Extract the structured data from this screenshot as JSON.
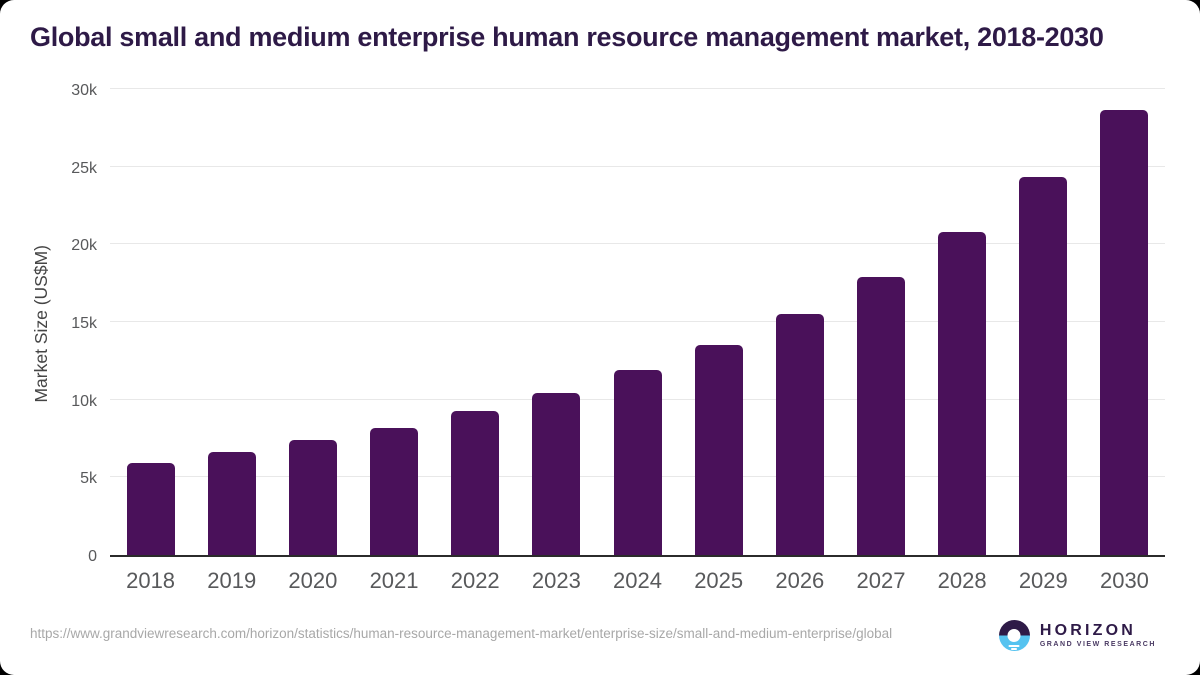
{
  "page": {
    "title": "Global small and medium enterprise human resource management market, 2018-2030",
    "source_url": "https://www.grandviewresearch.com/horizon/statistics/human-resource-management-market/enterprise-size/small-and-medium-enterprise/global",
    "logo": {
      "name": "HORIZON",
      "subtitle": "GRAND VIEW RESEARCH"
    }
  },
  "colors": {
    "bar": "#4A115A",
    "title": "#2E1A47",
    "tick_text": "#58595B",
    "gridline": "#E8E8E8",
    "axis_line": "#2B2B2B",
    "url_text": "#A8A8A8",
    "logo_blue": "#56C3F0"
  },
  "chart_data": {
    "type": "bar",
    "title": "Global small and medium enterprise human resource management market, 2018-2030",
    "xlabel": "",
    "ylabel": "Market Size (US$M)",
    "categories": [
      "2018",
      "2019",
      "2020",
      "2021",
      "2022",
      "2023",
      "2024",
      "2025",
      "2026",
      "2027",
      "2028",
      "2029",
      "2030"
    ],
    "values": [
      5900,
      6600,
      7400,
      8200,
      9300,
      10450,
      11900,
      13550,
      15500,
      17900,
      20800,
      24350,
      28650
    ],
    "ylim": [
      0,
      30000
    ],
    "yticks": [
      0,
      5000,
      10000,
      15000,
      20000,
      25000,
      30000
    ],
    "ytick_labels": [
      "0",
      "5k",
      "10k",
      "15k",
      "20k",
      "25k",
      "30k"
    ],
    "grid": true,
    "legend": false,
    "bar_color": "#4A115A"
  }
}
